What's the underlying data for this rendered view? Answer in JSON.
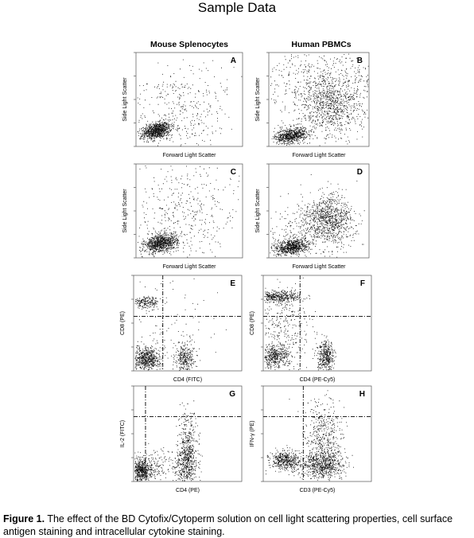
{
  "title": "Sample Data",
  "columns": [
    "Mouse Splenocytes",
    "Human PBMCs"
  ],
  "caption": {
    "label": "Figure 1.",
    "text": " The effect of the BD Cytofix/Cytoperm solution on cell light scattering properties, cell surface antigen staining and intracellular cytokine staining."
  },
  "chart_data": [
    {
      "panel": "A",
      "type": "scatter",
      "xlabel": "Forward Light Scatter",
      "ylabel": "Side Light Scatter",
      "column": "Mouse Splenocytes"
    },
    {
      "panel": "B",
      "type": "scatter",
      "xlabel": "Forward Light Scatter",
      "ylabel": "Side Light Scatter",
      "column": "Human PBMCs"
    },
    {
      "panel": "C",
      "type": "scatter",
      "xlabel": "Forward Light Scatter",
      "ylabel": "Side Light Scatter",
      "column": "Mouse Splenocytes"
    },
    {
      "panel": "D",
      "type": "scatter",
      "xlabel": "Forward Light Scatter",
      "ylabel": "Side Light Scatter",
      "column": "Human PBMCs"
    },
    {
      "panel": "E",
      "type": "scatter",
      "xlabel": "CD4 (FITC)",
      "ylabel": "CD8 (PE)",
      "column": "Mouse Splenocytes",
      "quadrant_gates": true
    },
    {
      "panel": "F",
      "type": "scatter",
      "xlabel": "CD4 (PE-Cy5)",
      "ylabel": "CD8 (PE)",
      "column": "Human PBMCs",
      "quadrant_gates": true
    },
    {
      "panel": "G",
      "type": "scatter",
      "xlabel": "CD4 (PE)",
      "ylabel": "IL-2 (FITC)",
      "column": "Mouse Splenocytes",
      "quadrant_gates": true
    },
    {
      "panel": "H",
      "type": "scatter",
      "xlabel": "CD3 (PE-Cy5)",
      "ylabel": "IFN-γ (PE)",
      "column": "Human PBMCs",
      "quadrant_gates": true
    }
  ]
}
